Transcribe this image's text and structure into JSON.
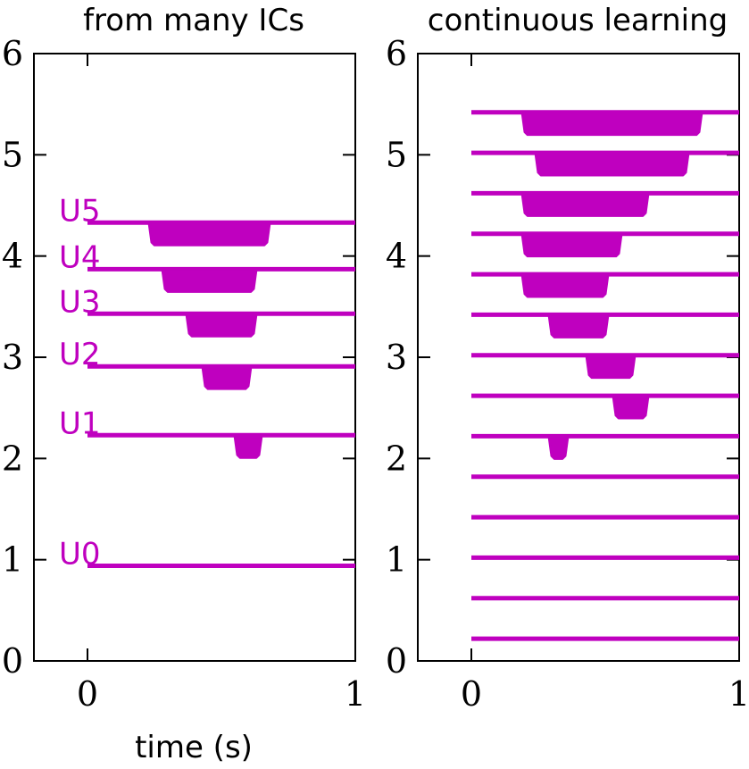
{
  "colors": {
    "trace": "#bf00bf",
    "axis": "#000000"
  },
  "x_label": "time (s)",
  "chart_data": [
    {
      "type": "line",
      "title": "from many ICs",
      "xlabel": "time (s)",
      "ylabel": "",
      "xlim": [
        -0.2,
        1.0
      ],
      "ylim": [
        0,
        6
      ],
      "xticks": [
        "0",
        "1"
      ],
      "yticks": [
        "0",
        "1",
        "2",
        "3",
        "4",
        "5",
        "6"
      ],
      "series": [
        {
          "name": "U0",
          "baseline": 0.94,
          "dip_start": null,
          "dip_end": null,
          "depth": 0
        },
        {
          "name": "U1",
          "baseline": 2.23,
          "dip_start": 0.55,
          "dip_end": 0.65,
          "depth": 0.22
        },
        {
          "name": "U2",
          "baseline": 2.91,
          "dip_start": 0.43,
          "dip_end": 0.61,
          "depth": 0.22
        },
        {
          "name": "U3",
          "baseline": 3.43,
          "dip_start": 0.37,
          "dip_end": 0.63,
          "depth": 0.22
        },
        {
          "name": "U4",
          "baseline": 3.87,
          "dip_start": 0.28,
          "dip_end": 0.63,
          "depth": 0.22
        },
        {
          "name": "U5",
          "baseline": 4.33,
          "dip_start": 0.23,
          "dip_end": 0.68,
          "depth": 0.22
        }
      ]
    },
    {
      "type": "line",
      "title": "continuous learning",
      "xlabel": "",
      "ylabel": "",
      "xlim": [
        -0.2,
        1.0
      ],
      "ylim": [
        0,
        6
      ],
      "xticks": [
        "0",
        "1"
      ],
      "yticks": [
        "0",
        "1",
        "2",
        "3",
        "4",
        "5",
        "6"
      ],
      "series": [
        {
          "baseline": 0.22,
          "dip_start": null,
          "dip_end": null,
          "depth": 0
        },
        {
          "baseline": 0.62,
          "dip_start": null,
          "dip_end": null,
          "depth": 0
        },
        {
          "baseline": 1.02,
          "dip_start": null,
          "dip_end": null,
          "depth": 0
        },
        {
          "baseline": 1.42,
          "dip_start": null,
          "dip_end": null,
          "depth": 0
        },
        {
          "baseline": 1.82,
          "dip_start": null,
          "dip_end": null,
          "depth": 0
        },
        {
          "baseline": 2.22,
          "dip_start": 0.29,
          "dip_end": 0.36,
          "depth": 0.22
        },
        {
          "baseline": 2.62,
          "dip_start": 0.53,
          "dip_end": 0.66,
          "depth": 0.22
        },
        {
          "baseline": 3.02,
          "dip_start": 0.43,
          "dip_end": 0.61,
          "depth": 0.22
        },
        {
          "baseline": 3.42,
          "dip_start": 0.29,
          "dip_end": 0.51,
          "depth": 0.22
        },
        {
          "baseline": 3.82,
          "dip_start": 0.19,
          "dip_end": 0.51,
          "depth": 0.22
        },
        {
          "baseline": 4.22,
          "dip_start": 0.19,
          "dip_end": 0.56,
          "depth": 0.22
        },
        {
          "baseline": 4.62,
          "dip_start": 0.19,
          "dip_end": 0.66,
          "depth": 0.22
        },
        {
          "baseline": 5.02,
          "dip_start": 0.24,
          "dip_end": 0.81,
          "depth": 0.22
        },
        {
          "baseline": 5.42,
          "dip_start": 0.19,
          "dip_end": 0.86,
          "depth": 0.22
        }
      ]
    }
  ]
}
